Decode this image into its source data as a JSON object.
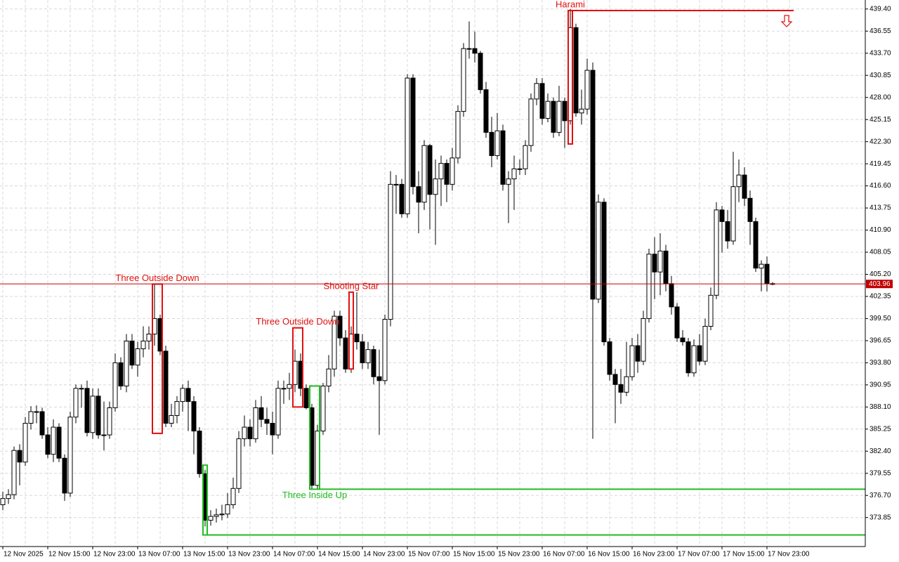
{
  "chart_data": {
    "type": "candlestick",
    "ylim": [
      370.11,
      440.56
    ],
    "yticks": [
      {
        "value": 439.4,
        "label": "439.40"
      },
      {
        "value": 436.55,
        "label": "436.55"
      },
      {
        "value": 433.7,
        "label": "433.70"
      },
      {
        "value": 430.85,
        "label": "430.85"
      },
      {
        "value": 428.0,
        "label": "428.00"
      },
      {
        "value": 425.15,
        "label": "425.15"
      },
      {
        "value": 422.3,
        "label": "422.30"
      },
      {
        "value": 419.45,
        "label": "419.45"
      },
      {
        "value": 416.6,
        "label": "416.60"
      },
      {
        "value": 413.75,
        "label": "413.75"
      },
      {
        "value": 410.9,
        "label": "410.90"
      },
      {
        "value": 408.05,
        "label": "408.05"
      },
      {
        "value": 405.2,
        "label": "405.20"
      },
      {
        "value": 402.35,
        "label": "402.35"
      },
      {
        "value": 399.5,
        "label": "399.50"
      },
      {
        "value": 396.65,
        "label": "396.65"
      },
      {
        "value": 393.8,
        "label": "393.80"
      },
      {
        "value": 390.95,
        "label": "390.95"
      },
      {
        "value": 388.1,
        "label": "388.10"
      },
      {
        "value": 385.25,
        "label": "385.25"
      },
      {
        "value": 382.4,
        "label": "382.40"
      },
      {
        "value": 379.55,
        "label": "379.55"
      },
      {
        "value": 376.7,
        "label": "376.70"
      },
      {
        "value": 373.85,
        "label": "373.85"
      }
    ],
    "grid": true,
    "time_labels": [
      "12 Nov 2025",
      "12 Nov 15:00",
      "12 Nov 23:00",
      "13 Nov 07:00",
      "13 Nov 15:00",
      "13 Nov 23:00",
      "14 Nov 07:00",
      "14 Nov 15:00",
      "14 Nov 23:00",
      "15 Nov 07:00",
      "15 Nov 15:00",
      "15 Nov 23:00",
      "16 Nov 07:00",
      "16 Nov 15:00",
      "16 Nov 23:00",
      "17 Nov 07:00",
      "17 Nov 15:00",
      "17 Nov 23:00"
    ],
    "bull_color": "#ffffff",
    "bear_color": "#000000",
    "current_price": 403.96,
    "current_price_color": "#c00000",
    "candles": [
      [
        375.5,
        377.2,
        374.8,
        376.3
      ],
      [
        376.3,
        377.5,
        375.6,
        376.8
      ],
      [
        376.8,
        383.0,
        376.2,
        382.5
      ],
      [
        382.5,
        383.3,
        378.0,
        381.0
      ],
      [
        381.0,
        386.8,
        380.5,
        386.0
      ],
      [
        386.0,
        388.2,
        385.2,
        387.5
      ],
      [
        387.5,
        388.3,
        386.0,
        387.5
      ],
      [
        387.5,
        388.0,
        384.0,
        384.5
      ],
      [
        384.5,
        385.5,
        381.5,
        382.0
      ],
      [
        382.0,
        386.5,
        381.0,
        385.5
      ],
      [
        385.5,
        386.0,
        381.0,
        381.5
      ],
      [
        381.5,
        382.0,
        376.0,
        377.0
      ],
      [
        377.0,
        387.5,
        376.5,
        386.8
      ],
      [
        386.8,
        391.0,
        386.0,
        390.5
      ],
      [
        390.5,
        391.0,
        388.0,
        390.5
      ],
      [
        390.5,
        391.5,
        384.3,
        384.8
      ],
      [
        384.8,
        390.5,
        384.0,
        389.5
      ],
      [
        389.5,
        390.5,
        384.0,
        384.5
      ],
      [
        384.5,
        388.8,
        382.5,
        384.5
      ],
      [
        384.5,
        388.8,
        384.0,
        388.0
      ],
      [
        388.0,
        395.0,
        387.5,
        393.8
      ],
      [
        393.8,
        394.5,
        390.3,
        390.8
      ],
      [
        390.8,
        397.5,
        390.0,
        396.6
      ],
      [
        396.6,
        397.5,
        393.0,
        393.5
      ],
      [
        393.5,
        396.5,
        392.0,
        395.6
      ],
      [
        395.6,
        398.5,
        394.5,
        396.6
      ],
      [
        396.6,
        398.5,
        395.5,
        397.5
      ],
      [
        397.5,
        403.9,
        396.0,
        399.5
      ],
      [
        399.5,
        400.0,
        394.8,
        395.3
      ],
      [
        395.3,
        396.0,
        385.5,
        386.0
      ],
      [
        386.0,
        388.5,
        385.5,
        387.0
      ],
      [
        387.0,
        389.5,
        386.0,
        388.8
      ],
      [
        388.8,
        391.0,
        387.5,
        390.5
      ],
      [
        390.5,
        391.5,
        385.0,
        388.8
      ],
      [
        388.8,
        389.5,
        382.0,
        385.0
      ],
      [
        385.0,
        385.5,
        379.0,
        379.5
      ],
      [
        379.5,
        380.0,
        372.7,
        373.5
      ],
      [
        373.5,
        374.8,
        372.8,
        374.0
      ],
      [
        374.0,
        375.0,
        373.2,
        374.2
      ],
      [
        374.2,
        375.5,
        373.5,
        374.3
      ],
      [
        374.3,
        377.0,
        373.8,
        375.5
      ],
      [
        375.5,
        379.0,
        375.0,
        377.6
      ],
      [
        377.6,
        385.0,
        377.0,
        384.0
      ],
      [
        384.0,
        387.0,
        383.0,
        385.5
      ],
      [
        385.5,
        386.5,
        383.0,
        384.0
      ],
      [
        384.0,
        389.0,
        383.5,
        388.0
      ],
      [
        388.0,
        389.5,
        385.5,
        386.5
      ],
      [
        386.5,
        388.0,
        384.5,
        386.0
      ],
      [
        386.0,
        387.5,
        382.0,
        384.5
      ],
      [
        384.5,
        391.5,
        384.0,
        390.5
      ],
      [
        390.5,
        391.5,
        388.5,
        390.5
      ],
      [
        390.5,
        392.5,
        389.0,
        391.0
      ],
      [
        391.0,
        395.5,
        390.0,
        394.0
      ],
      [
        394.0,
        395.0,
        389.5,
        390.5
      ],
      [
        390.5,
        391.0,
        387.8,
        388.0
      ],
      [
        388.0,
        388.5,
        377.5,
        378.0
      ],
      [
        378.0,
        385.8,
        377.5,
        385.0
      ],
      [
        385.0,
        391.2,
        384.5,
        390.8
      ],
      [
        390.8,
        394.8,
        390.0,
        393.0
      ],
      [
        393.0,
        400.5,
        392.0,
        399.8
      ],
      [
        399.8,
        400.5,
        396.0,
        397.0
      ],
      [
        397.0,
        398.0,
        392.5,
        393.0
      ],
      [
        393.0,
        398.5,
        392.5,
        397.5
      ],
      [
        397.5,
        402.9,
        395.5,
        396.5
      ],
      [
        396.5,
        397.5,
        393.0,
        393.8
      ],
      [
        393.8,
        396.5,
        393.0,
        395.5
      ],
      [
        395.5,
        396.0,
        391.0,
        392.0
      ],
      [
        392.0,
        395.5,
        384.5,
        391.5
      ],
      [
        391.5,
        400.0,
        391.0,
        399.4
      ],
      [
        399.4,
        418.5,
        398.5,
        416.8
      ],
      [
        416.8,
        418.0,
        413.0,
        416.8
      ],
      [
        416.8,
        417.5,
        412.5,
        413.0
      ],
      [
        413.0,
        431.0,
        412.5,
        430.5
      ],
      [
        430.5,
        431.0,
        415.5,
        416.5
      ],
      [
        416.5,
        418.5,
        410.5,
        414.5
      ],
      [
        414.5,
        422.5,
        413.5,
        421.8
      ],
      [
        421.8,
        422.0,
        411.0,
        415.5
      ],
      [
        415.5,
        420.0,
        409.0,
        417.5
      ],
      [
        417.5,
        420.5,
        414.0,
        419.5
      ],
      [
        419.5,
        420.0,
        414.5,
        416.8
      ],
      [
        416.8,
        421.5,
        416.0,
        420.2
      ],
      [
        420.2,
        427.0,
        419.5,
        426.2
      ],
      [
        426.2,
        435.0,
        425.5,
        434.3
      ],
      [
        434.3,
        437.8,
        433.0,
        434.3
      ],
      [
        434.3,
        436.5,
        432.5,
        433.7
      ],
      [
        433.7,
        434.0,
        428.5,
        429.0
      ],
      [
        429.0,
        430.0,
        422.8,
        423.5
      ],
      [
        423.5,
        425.5,
        419.0,
        420.5
      ],
      [
        420.5,
        426.0,
        420.0,
        423.7
      ],
      [
        423.7,
        424.5,
        416.0,
        416.8
      ],
      [
        416.8,
        418.5,
        411.8,
        417.5
      ],
      [
        417.5,
        420.5,
        413.5,
        418.8
      ],
      [
        418.8,
        420.0,
        418.0,
        418.8
      ],
      [
        418.8,
        422.5,
        418.0,
        421.8
      ],
      [
        421.8,
        428.5,
        421.0,
        427.8
      ],
      [
        427.8,
        430.5,
        427.0,
        429.8
      ],
      [
        429.8,
        430.5,
        424.5,
        425.3
      ],
      [
        425.3,
        428.5,
        424.8,
        427.5
      ],
      [
        427.5,
        428.0,
        422.8,
        423.5
      ],
      [
        423.5,
        429.5,
        423.0,
        427.5
      ],
      [
        427.5,
        428.0,
        421.5,
        425.0
      ],
      [
        425.0,
        439.4,
        424.5,
        437.0
      ],
      [
        437.0,
        437.5,
        425.5,
        426.0
      ],
      [
        426.0,
        429.0,
        424.5,
        426.5
      ],
      [
        426.5,
        433.0,
        425.8,
        431.5
      ],
      [
        431.5,
        432.5,
        384.0,
        402.0
      ],
      [
        402.0,
        415.5,
        401.5,
        414.5
      ],
      [
        414.5,
        415.0,
        396.0,
        396.5
      ],
      [
        396.5,
        397.0,
        391.5,
        392.3
      ],
      [
        392.3,
        393.0,
        386.0,
        391.0
      ],
      [
        391.0,
        393.0,
        388.5,
        390.0
      ],
      [
        390.0,
        396.5,
        389.5,
        392.0
      ],
      [
        392.0,
        397.0,
        391.5,
        396.0
      ],
      [
        396.0,
        397.5,
        392.5,
        394.0
      ],
      [
        394.0,
        400.5,
        393.5,
        399.5
      ],
      [
        399.5,
        408.5,
        399.0,
        407.8
      ],
      [
        407.8,
        410.0,
        402.0,
        405.5
      ],
      [
        405.5,
        410.5,
        402.5,
        408.2
      ],
      [
        408.2,
        409.0,
        403.0,
        404.0
      ],
      [
        404.0,
        405.0,
        400.0,
        401.0
      ],
      [
        401.0,
        401.5,
        396.5,
        397.0
      ],
      [
        397.0,
        398.0,
        396.0,
        396.5
      ],
      [
        396.5,
        397.0,
        392.0,
        392.5
      ],
      [
        392.5,
        396.8,
        392.0,
        396.0
      ],
      [
        396.0,
        397.5,
        393.5,
        394.0
      ],
      [
        394.0,
        399.5,
        393.5,
        398.5
      ],
      [
        398.5,
        403.5,
        398.0,
        402.5
      ],
      [
        402.5,
        414.5,
        402.0,
        413.5
      ],
      [
        413.5,
        414.0,
        408.0,
        412.0
      ],
      [
        412.0,
        413.5,
        408.5,
        409.5
      ],
      [
        409.5,
        421.0,
        409.0,
        416.5
      ],
      [
        416.5,
        420.0,
        414.5,
        418.0
      ],
      [
        418.0,
        419.0,
        414.0,
        415.0
      ],
      [
        415.0,
        416.0,
        409.0,
        412.0
      ],
      [
        412.0,
        412.5,
        405.5,
        406.0
      ],
      [
        406.0,
        407.0,
        403.0,
        406.5
      ],
      [
        406.5,
        407.5,
        403.0,
        404.0
      ],
      [
        404.0,
        404.2,
        403.8,
        403.96
      ]
    ],
    "patterns": [
      {
        "label": "Three Outside Down",
        "color": "#e01010",
        "high": 403.94,
        "low": 384.7
      },
      {
        "label": "Three Outside Down",
        "color": "#e01010",
        "high": 398.3,
        "low": 388.1
      },
      {
        "label": "Shooting Star",
        "color": "#e01010",
        "high": 402.9,
        "low": 393.0
      },
      {
        "label": "Harami",
        "color": "#e01010",
        "high": 439.2,
        "low": 422.0,
        "level": 439.2
      },
      {
        "label": "Three Inside Up",
        "color": "#22bb22",
        "high": 390.8,
        "low": 377.5,
        "level": 377.5
      },
      {
        "color": "#22bb22",
        "high": 380.6,
        "low": 371.6,
        "level": 371.6
      }
    ]
  }
}
